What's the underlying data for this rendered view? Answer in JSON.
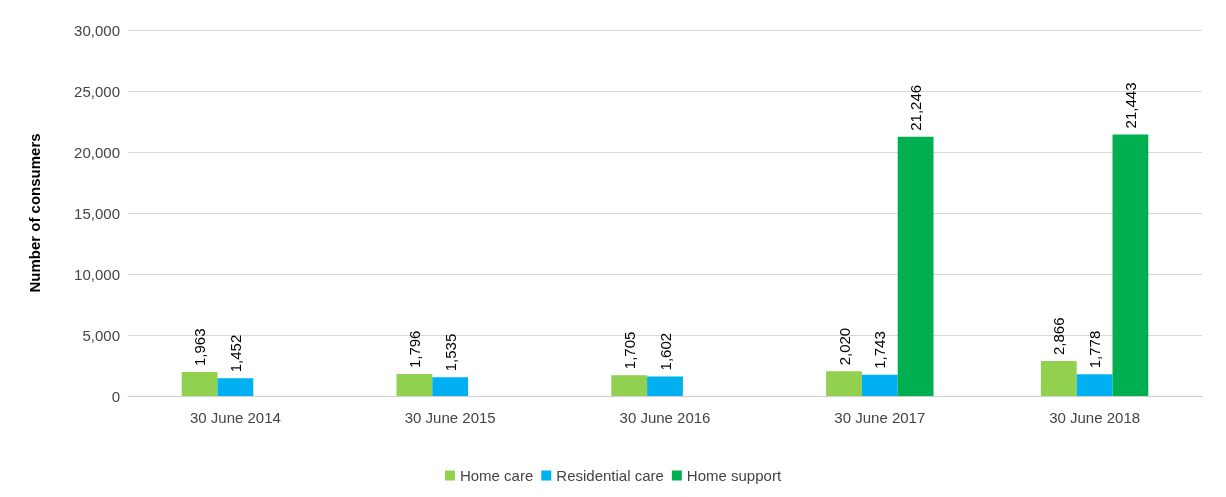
{
  "chart_data": {
    "type": "bar",
    "ylabel": "Number of consumers",
    "categories": [
      "30 June 2014",
      "30 June 2015",
      "30 June 2016",
      "30 June 2017",
      "30 June 2018"
    ],
    "series": [
      {
        "name": "Home care",
        "color": "#92d050",
        "values": [
          1963,
          1796,
          1705,
          2020,
          2866
        ],
        "value_labels": [
          "1,963",
          "1,796",
          "1,705",
          "2,020",
          "2,866"
        ]
      },
      {
        "name": "Residential care",
        "color": "#00b0f0",
        "values": [
          1452,
          1535,
          1602,
          1743,
          1778
        ],
        "value_labels": [
          "1,452",
          "1,535",
          "1,602",
          "1,743",
          "1,778"
        ]
      },
      {
        "name": "Home support",
        "color": "#00b050",
        "values": [
          null,
          null,
          null,
          21246,
          21443
        ],
        "value_labels": [
          null,
          null,
          null,
          "21,246",
          "21,443"
        ]
      }
    ],
    "ylim": [
      0,
      30000
    ],
    "yticks": [
      {
        "value": 0,
        "label": "0"
      },
      {
        "value": 5000,
        "label": "5,000"
      },
      {
        "value": 10000,
        "label": "10,000"
      },
      {
        "value": 15000,
        "label": "15,000"
      },
      {
        "value": 20000,
        "label": "20,000"
      },
      {
        "value": 25000,
        "label": "25,000"
      },
      {
        "value": 30000,
        "label": "30,000"
      }
    ],
    "grid": "y",
    "legend": "bottom"
  }
}
